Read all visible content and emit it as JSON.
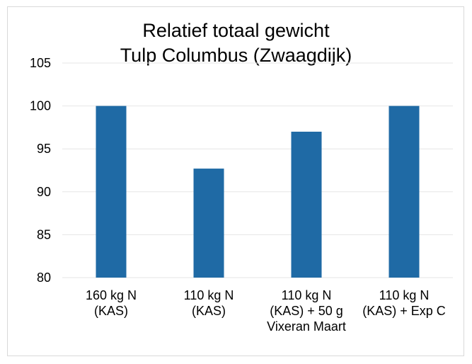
{
  "chart_data": {
    "type": "bar",
    "title": [
      "Relatief totaal gewicht",
      "Tulp Columbus (Zwaagdijk)"
    ],
    "categories": [
      [
        "160 kg N",
        "(KAS)"
      ],
      [
        "110 kg N",
        "(KAS)"
      ],
      [
        "110 kg N",
        "(KAS) + 50 g",
        "Vixeran Maart"
      ],
      [
        "110 kg N",
        "(KAS) + Exp C"
      ]
    ],
    "values": [
      100,
      92.7,
      97,
      100
    ],
    "ylim": [
      80,
      105
    ],
    "yticks": [
      80,
      85,
      90,
      95,
      100,
      105
    ],
    "grid": true,
    "bar_color": "#1f6aa5",
    "grid_color": "#e6e6e6"
  }
}
